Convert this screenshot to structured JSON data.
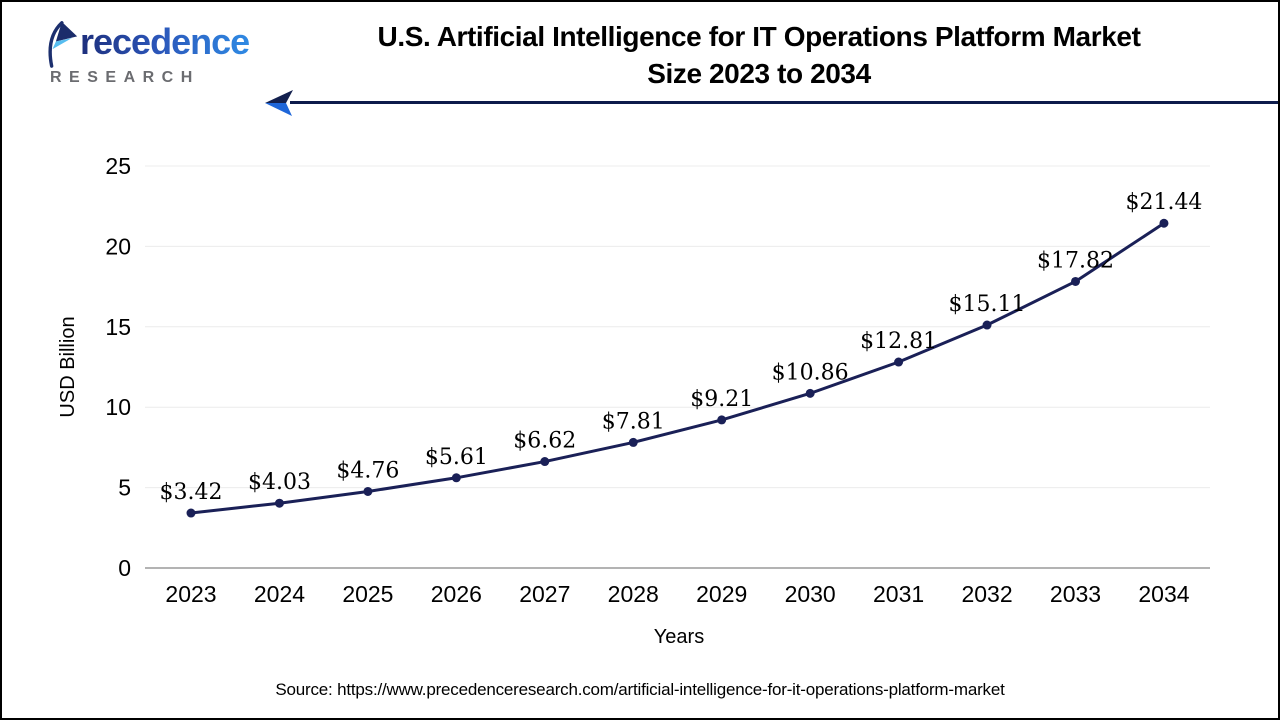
{
  "logo": {
    "brand": "Precedence",
    "wordmark_rest": "recedence",
    "subtitle": "RESEARCH"
  },
  "header": {
    "title_line1": "U.S. Artificial Intelligence for IT Operations Platform Market",
    "title_line2": "Size 2023 to 2034"
  },
  "chart_data": {
    "type": "line",
    "title": "U.S. Artificial Intelligence for IT Operations Platform Market Size 2023 to 2034",
    "categories": [
      "2023",
      "2024",
      "2025",
      "2026",
      "2027",
      "2028",
      "2029",
      "2030",
      "2031",
      "2032",
      "2033",
      "2034"
    ],
    "values": [
      3.42,
      4.03,
      4.76,
      5.61,
      6.62,
      7.81,
      9.21,
      10.86,
      12.81,
      15.11,
      17.82,
      21.44
    ],
    "data_labels": [
      "$3.42",
      "$4.03",
      "$4.76",
      "$5.61",
      "$6.62",
      "$7.81",
      "$9.21",
      "$10.86",
      "$12.81",
      "$15.11",
      "$17.82",
      "$21.44"
    ],
    "xlabel": "Years",
    "ylabel": "USD Billion",
    "ylim": [
      0,
      25
    ],
    "yticks": [
      0,
      5,
      10,
      15,
      20,
      25
    ],
    "grid": true,
    "legend": "none",
    "line_color": "#1a2057",
    "marker": "circle"
  },
  "footer": {
    "source": "Source: https://www.precedenceresearch.com/artificial-intelligence-for-it-operations-platform-market"
  },
  "colors": {
    "accent_navy": "#0d1b4b",
    "accent_blue": "#1e66d9",
    "grid_line": "#ececec",
    "axis_line": "#b3b3b3",
    "logo_gray": "#6b6c70"
  }
}
